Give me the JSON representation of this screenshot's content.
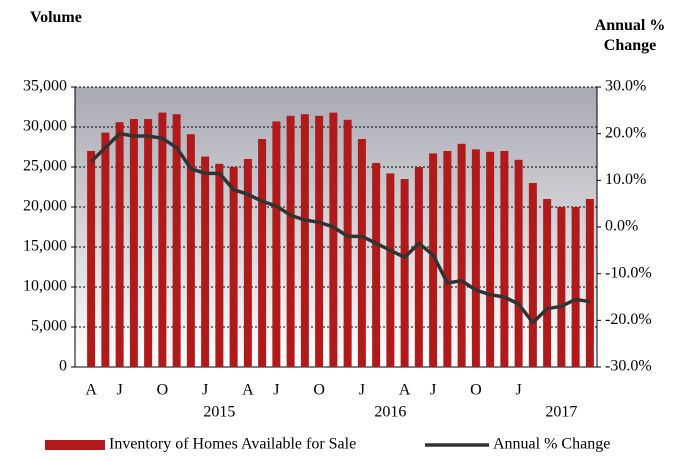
{
  "chart_data": {
    "type": "bar_line",
    "y_label": "Volume",
    "y2_label": "Annual % Change",
    "categories": [
      "A",
      null,
      "J",
      null,
      null,
      "O",
      null,
      null,
      "J",
      null,
      null,
      "A",
      null,
      "J",
      null,
      null,
      "O",
      null,
      null,
      "J",
      null,
      null,
      "A",
      null,
      "J",
      null,
      null,
      "O",
      null,
      null,
      "J",
      null,
      null,
      null,
      null,
      null
    ],
    "year_ticks": [
      {
        "index": 9,
        "label": "2015"
      },
      {
        "index": 21,
        "label": "2016"
      },
      {
        "index": 33,
        "label": "2017"
      }
    ],
    "series": [
      {
        "name": "Inventory of Homes Available for Sale",
        "color": "#b01a1a",
        "kind": "bar",
        "values": [
          27000,
          29300,
          30600,
          31000,
          31000,
          31800,
          31600,
          29100,
          26300,
          25400,
          25000,
          26000,
          28500,
          30700,
          31400,
          31600,
          31400,
          31800,
          30900,
          28500,
          25500,
          24200,
          23500,
          25000,
          26700,
          27000,
          27900,
          27200,
          26900,
          27000,
          25900,
          23000,
          21000,
          20000,
          20000,
          21000
        ]
      },
      {
        "name": "Annual % Change",
        "color": "#333333",
        "kind": "line",
        "axis": "y2",
        "values": [
          14,
          17,
          20,
          19.5,
          19.5,
          19,
          17,
          12.5,
          11.5,
          11.5,
          8,
          7,
          5.5,
          4.5,
          2.5,
          1.5,
          1,
          0,
          -2,
          -2,
          -3.5,
          -5,
          -6.5,
          -3.5,
          -6,
          -12,
          -11.5,
          -13.5,
          -14.5,
          -15,
          -16.5,
          -20.5,
          -17.5,
          -17,
          -15.5,
          -16
        ]
      }
    ],
    "ylim": [
      0,
      35000
    ],
    "yticks": [
      0,
      {
        "value": 5000,
        "label": "5,000"
      },
      {
        "value": 10000,
        "label": "10,000"
      },
      {
        "value": 15000,
        "label": "15,000"
      },
      {
        "value": 20000,
        "label": "20,000"
      },
      {
        "value": 25000,
        "label": "25,000"
      },
      {
        "value": 30000,
        "label": "30,000"
      },
      {
        "value": 35000,
        "label": "35,000"
      }
    ],
    "y2lim": [
      -30,
      30
    ],
    "y2ticks": [
      {
        "value": -30,
        "label": "-30.0%"
      },
      {
        "value": -20,
        "label": "-20.0%"
      },
      {
        "value": -10,
        "label": "-10.0%"
      },
      {
        "value": 0,
        "label": "0.0%"
      },
      {
        "value": 10,
        "label": "10.0%"
      },
      {
        "value": 20,
        "label": "20.0%"
      },
      {
        "value": 30,
        "label": "30.0%"
      }
    ],
    "grid": true
  }
}
